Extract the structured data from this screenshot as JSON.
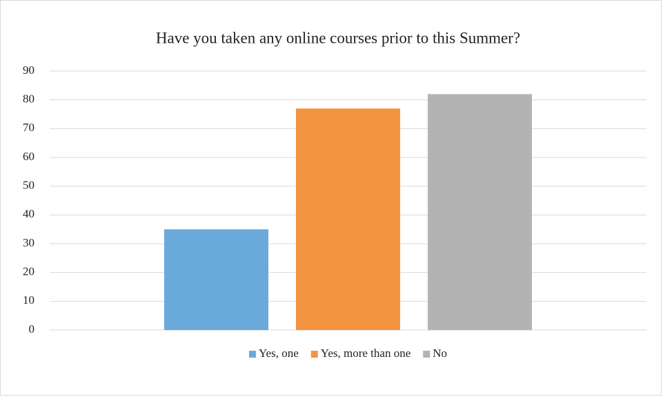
{
  "chart_data": {
    "type": "bar",
    "title": "Have you taken any online courses prior to this Summer?",
    "categories": [
      null
    ],
    "series": [
      {
        "name": "Yes, one",
        "color": "#6aaadb",
        "values": [
          35
        ]
      },
      {
        "name": "Yes, more than one",
        "color": "#f29441",
        "values": [
          77
        ]
      },
      {
        "name": "No",
        "color": "#b3b3b3",
        "values": [
          82
        ]
      }
    ],
    "ylim": [
      0,
      90
    ],
    "yticks": [
      0,
      10,
      20,
      30,
      40,
      50,
      60,
      70,
      80,
      90
    ],
    "grid": true,
    "legend": "bottom"
  }
}
